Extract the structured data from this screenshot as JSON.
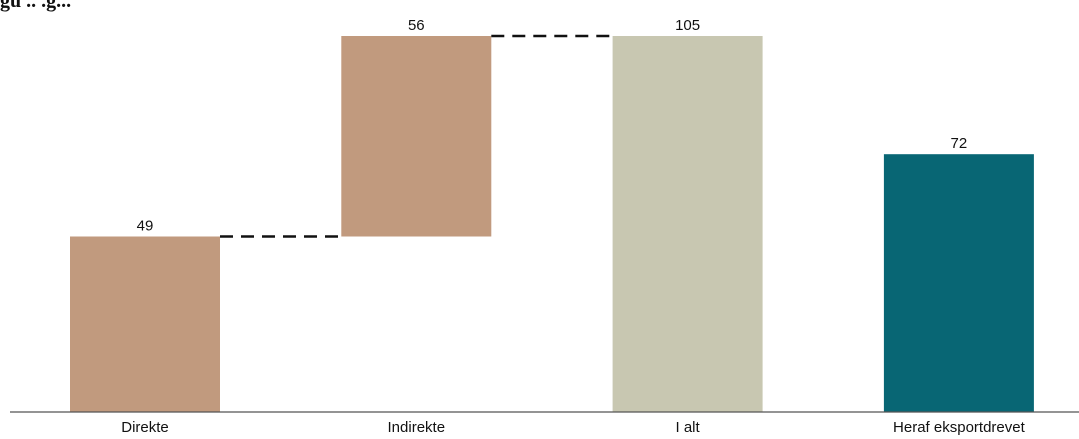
{
  "header": {
    "title_fragment": "gu  ..  .g..."
  },
  "chart_data": {
    "type": "bar",
    "subtype": "waterfall",
    "categories": [
      "Direkte",
      "Indirekte",
      "I alt",
      "Heraf eksportdrevet"
    ],
    "values": [
      49,
      56,
      105,
      72
    ],
    "bases": [
      0,
      49,
      0,
      0
    ],
    "data_labels": [
      "49",
      "56",
      "105",
      "72"
    ],
    "colors": [
      "#c19a7e",
      "#c19a7e",
      "#c8c7b1",
      "#086674"
    ],
    "connectors": [
      [
        0,
        1
      ],
      [
        1,
        2
      ]
    ],
    "ylim": [
      0,
      105
    ],
    "grid": false,
    "legend": "none",
    "title": "",
    "xlabel": "",
    "ylabel": ""
  }
}
